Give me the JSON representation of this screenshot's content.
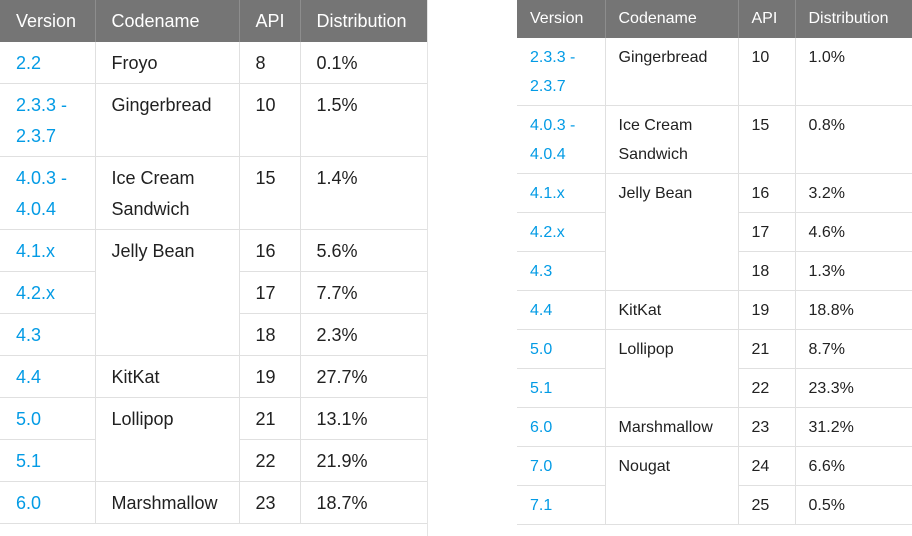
{
  "left_table": {
    "headers": [
      "Version",
      "Codename",
      "API",
      "Distribution"
    ],
    "groups": [
      {
        "codename": "Froyo",
        "rows": [
          {
            "version": "2.2",
            "api": "8",
            "distribution": "0.1%"
          }
        ]
      },
      {
        "codename": "Gingerbread",
        "rows": [
          {
            "version": "2.3.3 -\n2.3.7",
            "api": "10",
            "distribution": "1.5%"
          }
        ]
      },
      {
        "codename": "Ice Cream\nSandwich",
        "rows": [
          {
            "version": "4.0.3 -\n4.0.4",
            "api": "15",
            "distribution": "1.4%"
          }
        ]
      },
      {
        "codename": "Jelly Bean",
        "rows": [
          {
            "version": "4.1.x",
            "api": "16",
            "distribution": "5.6%"
          },
          {
            "version": "4.2.x",
            "api": "17",
            "distribution": "7.7%"
          },
          {
            "version": "4.3",
            "api": "18",
            "distribution": "2.3%"
          }
        ]
      },
      {
        "codename": "KitKat",
        "rows": [
          {
            "version": "4.4",
            "api": "19",
            "distribution": "27.7%"
          }
        ]
      },
      {
        "codename": "Lollipop",
        "rows": [
          {
            "version": "5.0",
            "api": "21",
            "distribution": "13.1%"
          },
          {
            "version": "5.1",
            "api": "22",
            "distribution": "21.9%"
          }
        ]
      },
      {
        "codename": "Marshmallow",
        "rows": [
          {
            "version": "6.0",
            "api": "23",
            "distribution": "18.7%"
          }
        ]
      }
    ]
  },
  "right_table": {
    "headers": [
      "Version",
      "Codename",
      "API",
      "Distribution"
    ],
    "groups": [
      {
        "codename": "Gingerbread",
        "rows": [
          {
            "version": "2.3.3 -\n2.3.7",
            "api": "10",
            "distribution": "1.0%"
          }
        ]
      },
      {
        "codename": "Ice Cream\nSandwich",
        "rows": [
          {
            "version": "4.0.3 -\n4.0.4",
            "api": "15",
            "distribution": "0.8%"
          }
        ]
      },
      {
        "codename": "Jelly Bean",
        "rows": [
          {
            "version": "4.1.x",
            "api": "16",
            "distribution": "3.2%"
          },
          {
            "version": "4.2.x",
            "api": "17",
            "distribution": "4.6%"
          },
          {
            "version": "4.3",
            "api": "18",
            "distribution": "1.3%"
          }
        ]
      },
      {
        "codename": "KitKat",
        "rows": [
          {
            "version": "4.4",
            "api": "19",
            "distribution": "18.8%"
          }
        ]
      },
      {
        "codename": "Lollipop",
        "rows": [
          {
            "version": "5.0",
            "api": "21",
            "distribution": "8.7%"
          },
          {
            "version": "5.1",
            "api": "22",
            "distribution": "23.3%"
          }
        ]
      },
      {
        "codename": "Marshmallow",
        "rows": [
          {
            "version": "6.0",
            "api": "23",
            "distribution": "31.2%"
          }
        ]
      },
      {
        "codename": "Nougat",
        "rows": [
          {
            "version": "7.0",
            "api": "24",
            "distribution": "6.6%"
          },
          {
            "version": "7.1",
            "api": "25",
            "distribution": "0.5%"
          }
        ]
      }
    ]
  },
  "colors": {
    "header_bg": "#757575",
    "version_link": "#039be5",
    "text": "#212121",
    "grid": "#e0e0e0"
  }
}
